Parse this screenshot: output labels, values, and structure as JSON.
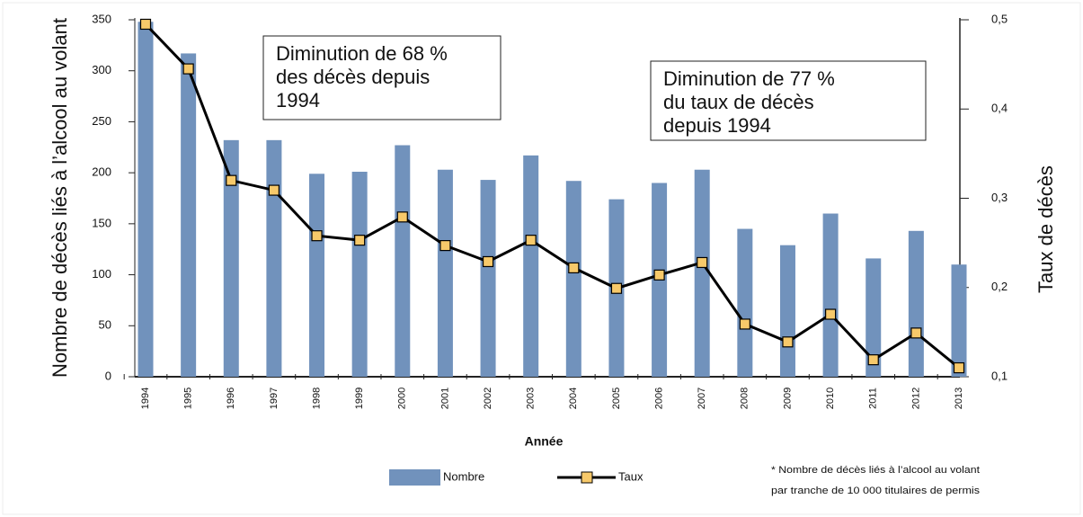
{
  "chart_data": {
    "type": "bar_line",
    "categories": [
      "1994",
      "1995",
      "1996",
      "1997",
      "1998",
      "1999",
      "2000",
      "2001",
      "2002",
      "2003",
      "2004",
      "2005",
      "2006",
      "2007",
      "2008",
      "2009",
      "2010",
      "2011",
      "2012",
      "2013"
    ],
    "series": [
      {
        "name": "Nombre",
        "type": "bar",
        "color": "#7192bc",
        "values": [
          348,
          317,
          232,
          232,
          199,
          201,
          227,
          203,
          193,
          217,
          192,
          174,
          190,
          203,
          145,
          129,
          160,
          116,
          143,
          110
        ]
      },
      {
        "name": "Taux",
        "type": "line",
        "axis": "y2",
        "color": "#000000",
        "marker_color": "#f7c96a",
        "values": [
          0.495,
          0.445,
          0.32,
          0.309,
          0.258,
          0.253,
          0.279,
          0.247,
          0.229,
          0.253,
          0.222,
          0.199,
          0.214,
          0.228,
          0.159,
          0.139,
          0.17,
          0.119,
          0.149,
          0.11
        ]
      }
    ],
    "xlabel": "Année",
    "ylabel": "Nombre de décès liés à l’alcool au volant",
    "y2label": "Taux de décès",
    "ylim": [
      0,
      350
    ],
    "yticks": [
      0,
      50,
      100,
      150,
      200,
      250,
      300,
      350
    ],
    "y2lim": [
      0.1,
      0.5
    ],
    "y2ticks": [
      {
        "value": 0.1,
        "label": "0,1"
      },
      {
        "value": 0.2,
        "label": "0,2"
      },
      {
        "value": 0.3,
        "label": "0,3"
      },
      {
        "value": 0.4,
        "label": "0,4"
      },
      {
        "value": 0.5,
        "label": "0,5"
      }
    ],
    "annotations": [
      {
        "lines": [
          "Diminution de 68 %",
          "des décès depuis",
          "1994"
        ]
      },
      {
        "lines": [
          "Diminution de 77 %",
          "du taux de décès",
          "depuis 1994"
        ]
      }
    ],
    "footnote": [
      "* Nombre de décès liés à l’alcool au volant",
      "par tranche de 10 000 titulaires de permis"
    ],
    "legend": "bottom"
  }
}
